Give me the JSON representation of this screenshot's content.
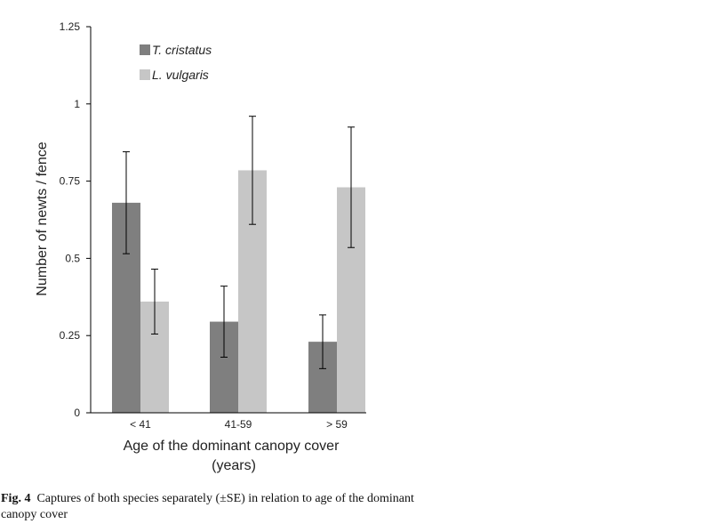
{
  "chart_data": {
    "type": "bar",
    "title": "",
    "xlabel_line1": "Age of the dominant canopy cover",
    "xlabel_line2": "(years)",
    "ylabel": "Number of newts / fence",
    "ylim": [
      0,
      1.25
    ],
    "yticks": [
      "0",
      "0.25",
      "0.5",
      "0.75",
      "1",
      "1.25"
    ],
    "ytick_values": [
      0,
      0.25,
      0.5,
      0.75,
      1,
      1.25
    ],
    "categories": [
      "< 41",
      "41-59",
      "> 59"
    ],
    "legend_position": "top-left",
    "grid": false,
    "series": [
      {
        "name": "T. cristatus",
        "color": "#7f7f7f",
        "values": [
          0.68,
          0.295,
          0.23
        ],
        "errors": [
          0.165,
          0.115,
          0.087
        ]
      },
      {
        "name": "L. vulgaris",
        "color": "#c6c6c6",
        "values": [
          0.36,
          0.785,
          0.73
        ],
        "errors": [
          0.105,
          0.175,
          0.195
        ]
      }
    ]
  },
  "caption": {
    "label": "Fig. 4",
    "text": "Captures of both species separately (±SE) in relation to age of the dominant canopy cover"
  }
}
